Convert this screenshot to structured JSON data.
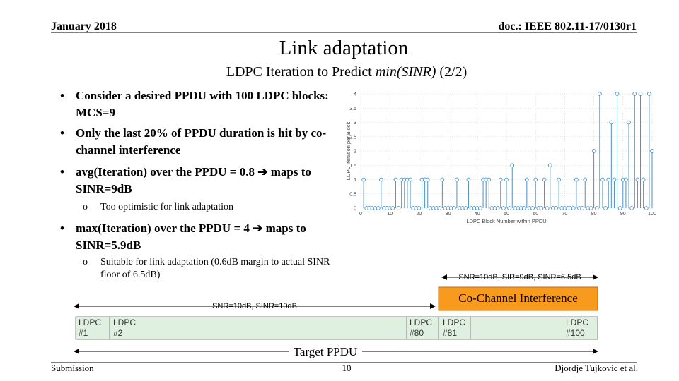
{
  "header": {
    "date": "January 2018",
    "doc": "doc.: IEEE 802.11-17/0130r1"
  },
  "title": "Link adaptation",
  "subtitle": {
    "before": "LDPC Iteration to Predict",
    "italic": "min(SINR)",
    "after": "(2/2)"
  },
  "bullets": [
    {
      "text": "Consider a desired PPDU with 100 LDPC blocks: MCS=9"
    },
    {
      "text": "Only the last 20% of PPDU duration is hit by co-channel interference"
    },
    {
      "text": "avg(Iteration) over the PPDU = 0.8 ➔ maps to SINR=9dB",
      "sub": [
        "Too optimistic for link adaptation"
      ]
    },
    {
      "text": "max(Iteration) over the PPDU = 4 ➔ maps to SINR=5.9dB",
      "sub": [
        "Suitable for link adaptation (0.6dB margin to actual SINR floor of 6.5dB)"
      ]
    }
  ],
  "plot": {
    "type": "stem",
    "xlabel": "LDPC Block Number within PPDU",
    "ylabel": "LDPC Iteration per Block",
    "color": "#4f8fc0",
    "grid": true,
    "xlim": [
      0,
      100
    ],
    "xticks": [
      0,
      10,
      20,
      30,
      40,
      50,
      60,
      70,
      80,
      90,
      100
    ],
    "ylim": [
      0,
      4
    ],
    "yticks": [
      0,
      0.5,
      1,
      1.5,
      2,
      2.5,
      3,
      3.5,
      4
    ],
    "x": [
      1,
      2,
      3,
      4,
      5,
      6,
      7,
      8,
      9,
      10,
      11,
      12,
      13,
      14,
      15,
      16,
      17,
      18,
      19,
      20,
      21,
      22,
      23,
      24,
      25,
      26,
      27,
      28,
      29,
      30,
      31,
      32,
      33,
      34,
      35,
      36,
      37,
      38,
      39,
      40,
      41,
      42,
      43,
      44,
      45,
      46,
      47,
      48,
      49,
      50,
      51,
      52,
      53,
      54,
      55,
      56,
      57,
      58,
      59,
      60,
      61,
      62,
      63,
      64,
      65,
      66,
      67,
      68,
      69,
      70,
      71,
      72,
      73,
      74,
      75,
      76,
      77,
      78,
      79,
      80,
      81,
      82,
      83,
      84,
      85,
      86,
      87,
      88,
      89,
      90,
      91,
      92,
      93,
      94,
      95,
      96,
      97,
      98,
      99,
      100
    ],
    "values": [
      1,
      0,
      0,
      0,
      0,
      0,
      1,
      0,
      0,
      0,
      0,
      1,
      0,
      1,
      1,
      1,
      1,
      0,
      0,
      0,
      1,
      1,
      1,
      0,
      0,
      0,
      0,
      1,
      0,
      0,
      0,
      0,
      1,
      0,
      0,
      0,
      1,
      0,
      0,
      0,
      0,
      1,
      1,
      1,
      0,
      0,
      0,
      1,
      0,
      1,
      0,
      1.5,
      0,
      0,
      0,
      0,
      1,
      0,
      0,
      1,
      0,
      0,
      1,
      0,
      1.5,
      0,
      0,
      1,
      0,
      0,
      0,
      0,
      0,
      1,
      0,
      0,
      1,
      0,
      0,
      2,
      0,
      4,
      1,
      0,
      1,
      3,
      1,
      4,
      0,
      1,
      1,
      3,
      0,
      4,
      1,
      4,
      1,
      0,
      4,
      2
    ]
  },
  "diagram": {
    "interference_conditions": "SNR=10dB, SIR=9dB, SINR=6.5dB",
    "interference_label": "Co-Channel Interference",
    "clean_conditions": "SNR=10dB, SINR=10dB",
    "blocks": [
      "LDPC #1",
      "LDPC #2",
      "LDPC #80",
      "LDPC #81",
      "LDPC #100"
    ],
    "ppdu_label": "Target PPDU"
  },
  "footer": {
    "left": "Submission",
    "page": "10",
    "right": "Djordje Tujkovic et al."
  }
}
